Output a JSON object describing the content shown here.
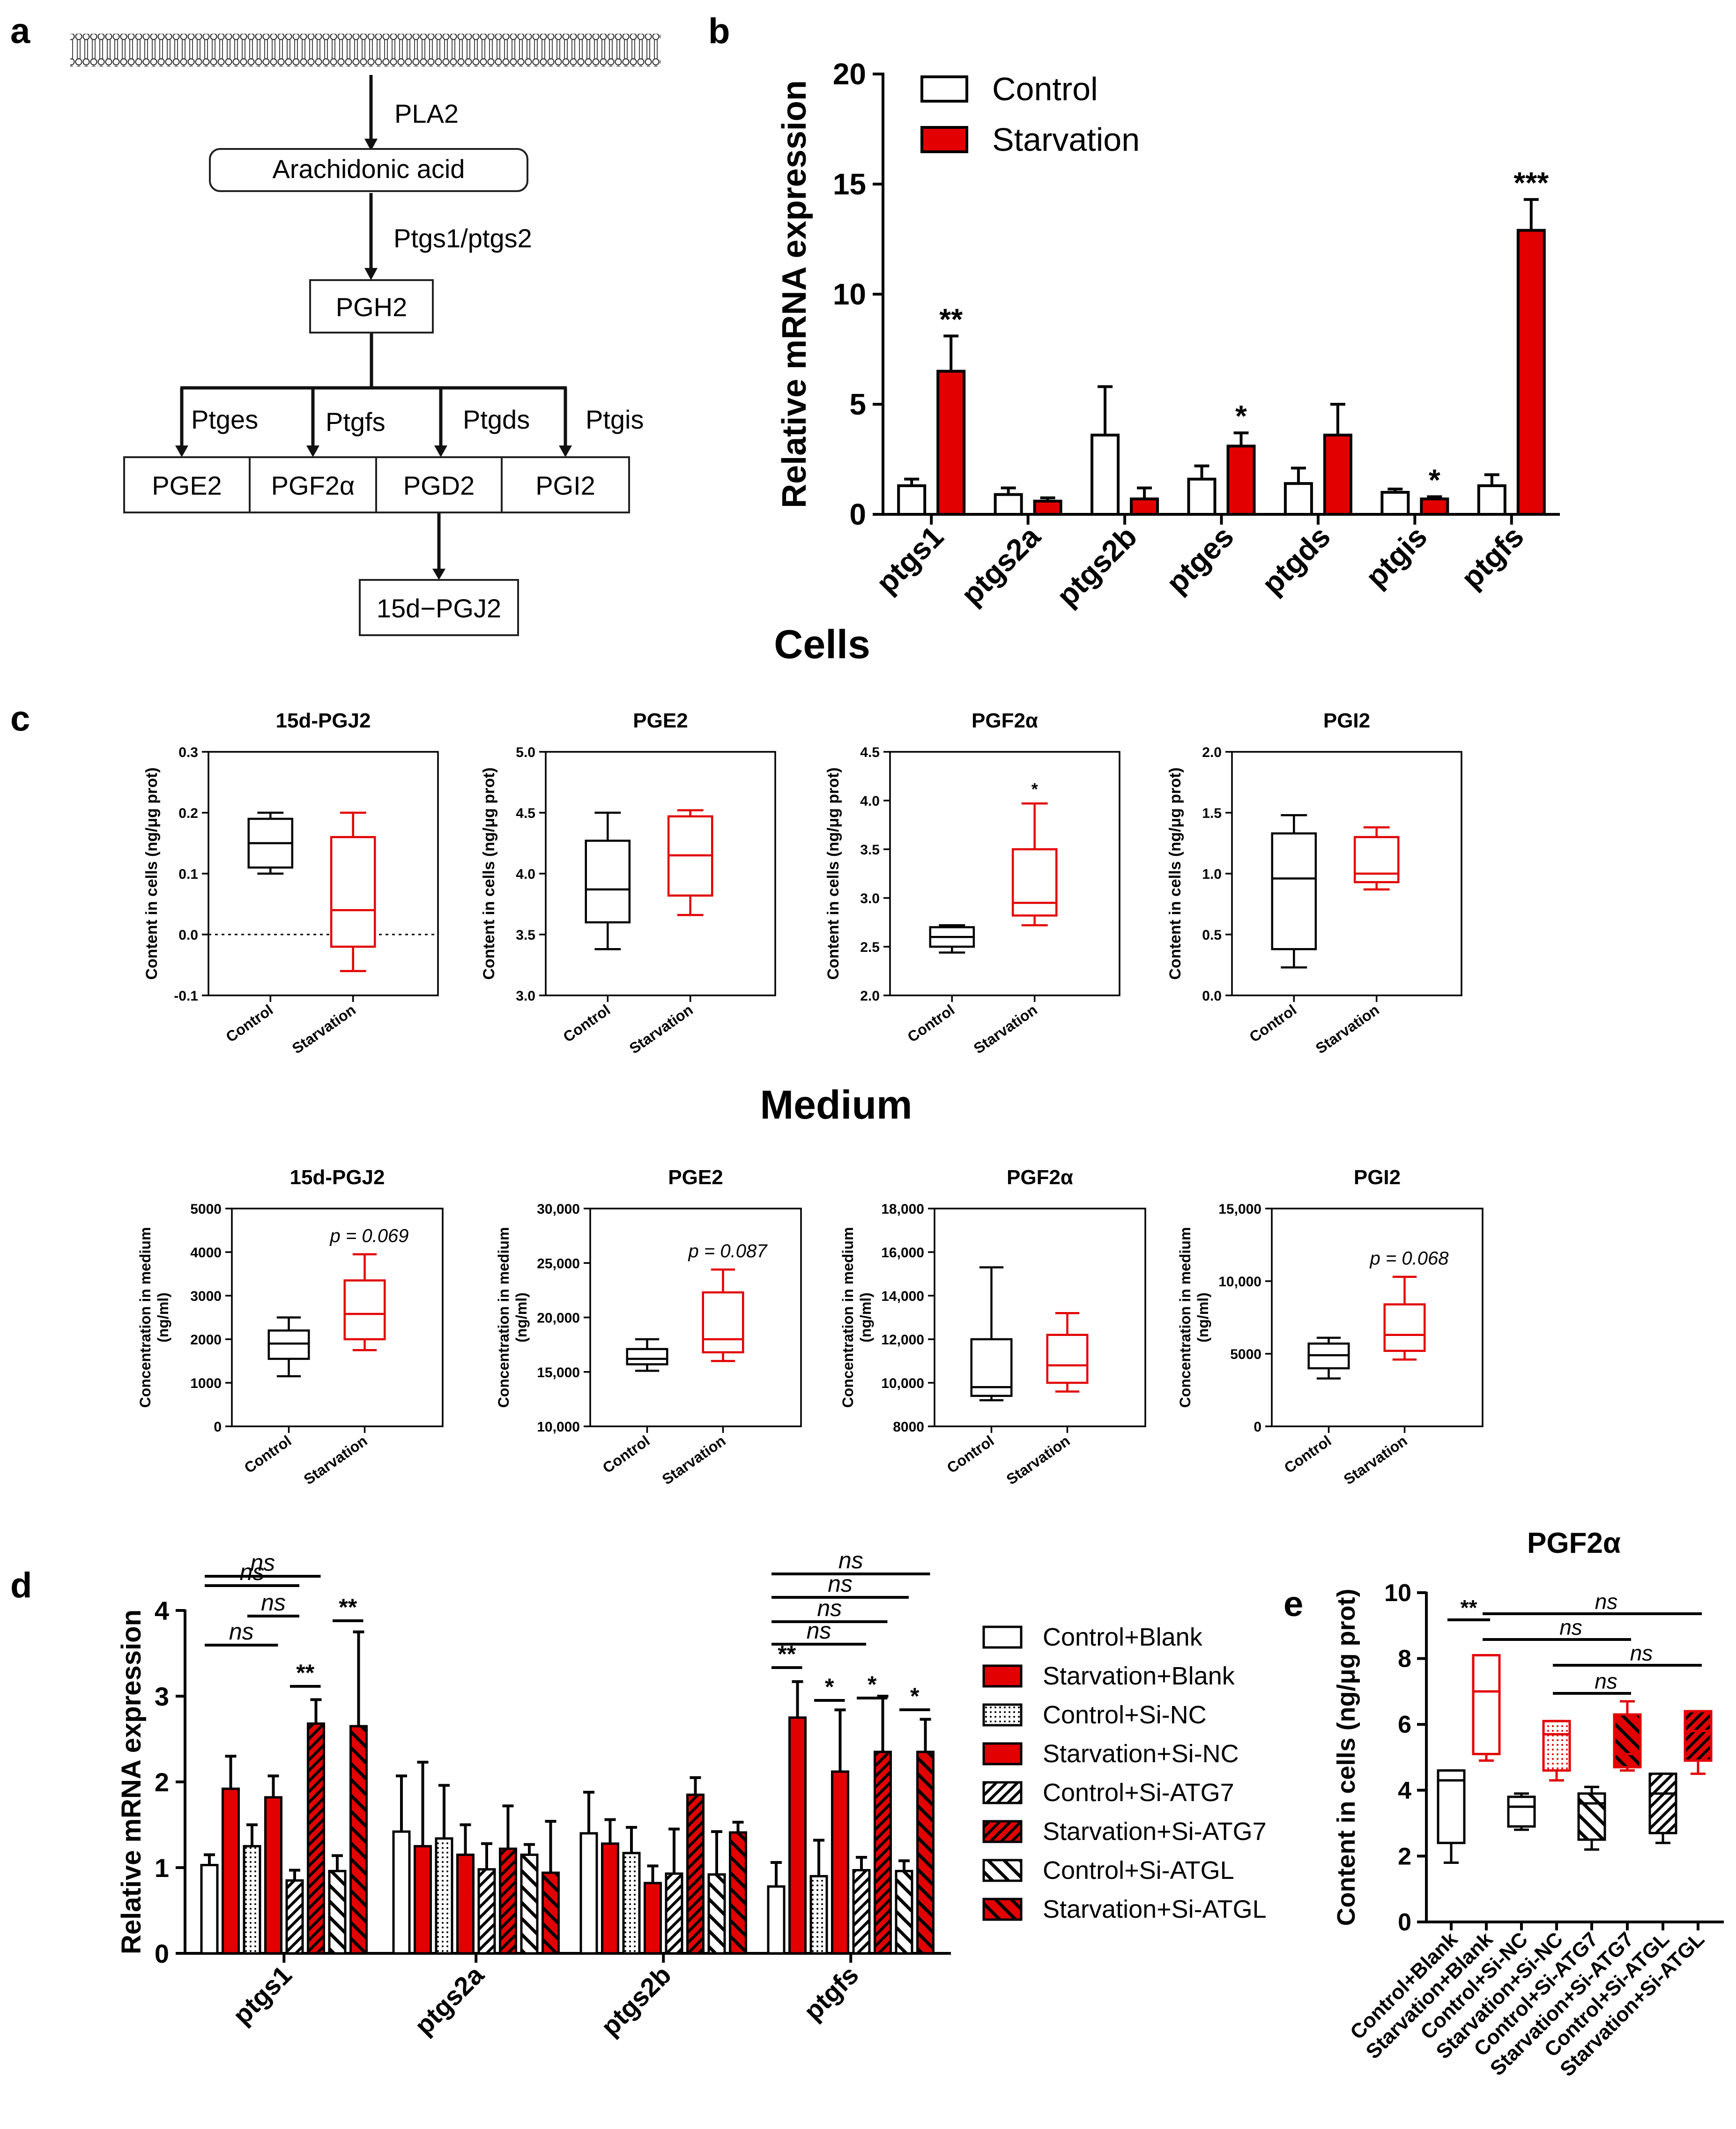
{
  "panel_labels": {
    "a": "a",
    "b": "b",
    "c": "c",
    "d": "d",
    "e": "e"
  },
  "pathway": {
    "step_enzymes": {
      "pla2": "PLA2",
      "ptgs": "Ptgs1/ptgs2"
    },
    "nodes": {
      "arachidonic": "Arachidonic acid",
      "pgh2": "PGH2",
      "pge2": "PGE2",
      "pgf2a": "PGF2α",
      "pgd2": "PGD2",
      "pgi2": "PGI2",
      "pgj2": "15d−PGJ2"
    },
    "branch_enzymes": [
      "Ptges",
      "Ptgfs",
      "Ptgds",
      "Ptgis"
    ]
  },
  "section_titles": {
    "cells": "Cells",
    "medium": "Medium"
  },
  "colors": {
    "control": "#ffffff",
    "starvation": "#e30000",
    "box_control": "#000000",
    "box_starvation": "#e30000"
  },
  "chart_data": [
    {
      "id": "b",
      "type": "bar",
      "ylabel": "Relative mRNA expression",
      "ylim": [
        0,
        20
      ],
      "yticks": [
        "0",
        "5",
        "10",
        "15",
        "20"
      ],
      "categories": [
        "ptgs1",
        "ptgs2a",
        "ptgs2b",
        "ptges",
        "ptgds",
        "ptgis",
        "ptgfs"
      ],
      "series": [
        {
          "name": "Control",
          "values": [
            1.3,
            0.9,
            3.6,
            1.6,
            1.4,
            1.0,
            1.3
          ],
          "errors": [
            0.3,
            0.3,
            2.2,
            0.6,
            0.7,
            0.15,
            0.5
          ]
        },
        {
          "name": "Starvation",
          "values": [
            6.5,
            0.6,
            0.7,
            3.1,
            3.6,
            0.7,
            12.9
          ],
          "errors": [
            1.6,
            0.15,
            0.5,
            0.6,
            1.4,
            0.1,
            1.4
          ]
        }
      ],
      "annotations": [
        "**",
        "",
        "",
        "*",
        "",
        "*",
        "***"
      ]
    },
    {
      "id": "c1",
      "type": "box",
      "title": "15d-PGJ2",
      "ylabel": "Content in cells (ng/μg prot)",
      "ylim": [
        -0.1,
        0.3
      ],
      "yticks": [
        "-0.1",
        "0.0",
        "0.1",
        "0.2",
        "0.3"
      ],
      "zero_line": true,
      "groups": [
        "Control",
        "Starvation"
      ],
      "stats": [
        [
          0.1,
          0.11,
          0.15,
          0.19,
          0.2
        ],
        [
          -0.06,
          -0.02,
          0.04,
          0.16,
          0.2
        ]
      ],
      "annotation": ""
    },
    {
      "id": "c2",
      "type": "box",
      "title": "PGE2",
      "ylabel": "Content in cells (ng/μg prot)",
      "ylim": [
        3.0,
        5.0
      ],
      "yticks": [
        "3.0",
        "3.5",
        "4.0",
        "4.5",
        "5.0"
      ],
      "groups": [
        "Control",
        "Starvation"
      ],
      "stats": [
        [
          3.38,
          3.6,
          3.87,
          4.27,
          4.5
        ],
        [
          3.66,
          3.82,
          4.15,
          4.47,
          4.52
        ]
      ],
      "annotation": ""
    },
    {
      "id": "c3",
      "type": "box",
      "title": "PGF2α",
      "ylabel": "Content in cells (ng/μg prot)",
      "ylim": [
        2.0,
        4.5
      ],
      "yticks": [
        "2.0",
        "2.5",
        "3.0",
        "3.5",
        "4.0",
        "4.5"
      ],
      "groups": [
        "Control",
        "Starvation"
      ],
      "stats": [
        [
          2.44,
          2.5,
          2.6,
          2.7,
          2.72
        ],
        [
          2.72,
          2.82,
          2.95,
          3.5,
          3.97
        ]
      ],
      "annotation": "*"
    },
    {
      "id": "c4",
      "type": "box",
      "title": "PGI2",
      "ylabel": "Content in cells (ng/μg prot)",
      "ylim": [
        0.0,
        2.0
      ],
      "yticks": [
        "0.0",
        "0.5",
        "1.0",
        "1.5",
        "2.0"
      ],
      "groups": [
        "Control",
        "Starvation"
      ],
      "stats": [
        [
          0.23,
          0.38,
          0.96,
          1.33,
          1.48
        ],
        [
          0.87,
          0.93,
          1.0,
          1.3,
          1.38
        ]
      ],
      "annotation": ""
    },
    {
      "id": "m1",
      "type": "box",
      "title": "15d-PGJ2",
      "ylabel": "Concentration in medium (ng/ml)",
      "ylim": [
        0,
        5000
      ],
      "yticks": [
        "0",
        "1000",
        "2000",
        "3000",
        "4000",
        "5000"
      ],
      "groups": [
        "Control",
        "Starvation"
      ],
      "stats": [
        [
          1150,
          1550,
          1900,
          2200,
          2500
        ],
        [
          1750,
          2000,
          2580,
          3350,
          3950
        ]
      ],
      "annotation": "p = 0.069"
    },
    {
      "id": "m2",
      "type": "box",
      "title": "PGE2",
      "ylabel": "Concentration in medium (ng/ml)",
      "ylim": [
        10000,
        30000
      ],
      "yticks": [
        "10,000",
        "15,000",
        "20,000",
        "25,000",
        "30,000"
      ],
      "groups": [
        "Control",
        "Starvation"
      ],
      "stats": [
        [
          15100,
          15700,
          16200,
          17100,
          18000
        ],
        [
          16000,
          16800,
          18000,
          22300,
          24400
        ]
      ],
      "annotation": "p = 0.087"
    },
    {
      "id": "m3",
      "type": "box",
      "title": "PGF2α",
      "ylabel": "Concentration in medium (ng/ml)",
      "ylim": [
        8000,
        18000
      ],
      "yticks": [
        "8000",
        "10,000",
        "12,000",
        "14,000",
        "16,000",
        "18,000"
      ],
      "groups": [
        "Control",
        "Starvation"
      ],
      "stats": [
        [
          9200,
          9400,
          9800,
          12000,
          15300
        ],
        [
          9600,
          10000,
          10800,
          12200,
          13200
        ]
      ],
      "annotation": ""
    },
    {
      "id": "m4",
      "type": "box",
      "title": "PGI2",
      "ylabel": "Concentration in medium (ng/ml)",
      "ylim": [
        0,
        15000
      ],
      "yticks": [
        "0",
        "5000",
        "10,000",
        "15,000"
      ],
      "groups": [
        "Control",
        "Starvation"
      ],
      "stats": [
        [
          3300,
          4000,
          4900,
          5700,
          6100
        ],
        [
          4600,
          5200,
          6300,
          8400,
          10300
        ]
      ],
      "annotation": "p = 0.068"
    },
    {
      "id": "d",
      "type": "bar",
      "ylabel": "Relative mRNA expression",
      "ylim": [
        0,
        4
      ],
      "yticks": [
        "0",
        "1",
        "2",
        "3",
        "4"
      ],
      "categories": [
        "ptgs1",
        "ptgs2a",
        "ptgs2b",
        "ptgfs"
      ],
      "series": [
        {
          "name": "Control+Blank",
          "values": [
            1.03,
            1.42,
            1.4,
            0.78
          ],
          "errors": [
            0.12,
            0.65,
            0.48,
            0.28
          ]
        },
        {
          "name": "Starvation+Blank",
          "values": [
            1.92,
            1.25,
            1.28,
            2.75
          ],
          "errors": [
            0.38,
            0.98,
            0.28,
            0.42
          ]
        },
        {
          "name": "Control+Si-NC",
          "values": [
            1.25,
            1.34,
            1.17,
            0.9
          ],
          "errors": [
            0.25,
            0.62,
            0.3,
            0.42
          ]
        },
        {
          "name": "Starvation+Si-NC",
          "values": [
            1.82,
            1.15,
            0.82,
            2.12
          ],
          "errors": [
            0.25,
            0.35,
            0.2,
            0.72
          ]
        },
        {
          "name": "Control+Si-ATG7",
          "values": [
            0.85,
            0.98,
            0.93,
            0.97
          ],
          "errors": [
            0.12,
            0.3,
            0.52,
            0.15
          ]
        },
        {
          "name": "Starvation+Si-ATG7",
          "values": [
            2.68,
            1.22,
            1.85,
            2.35
          ],
          "errors": [
            0.28,
            0.5,
            0.2,
            0.65
          ]
        },
        {
          "name": "Control+Si-ATGL",
          "values": [
            0.96,
            1.15,
            0.92,
            0.96
          ],
          "errors": [
            0.18,
            0.12,
            0.5,
            0.12
          ]
        },
        {
          "name": "Starvation+Si-ATGL",
          "values": [
            2.65,
            0.94,
            1.41,
            2.35
          ],
          "errors": [
            1.1,
            0.6,
            0.12,
            0.38
          ]
        }
      ],
      "annotations": [
        "ns",
        "ns",
        "ns",
        "ns",
        "**",
        "**",
        "ns",
        "ns",
        "ns",
        "ns",
        "**",
        "*",
        "*",
        "*"
      ]
    },
    {
      "id": "e",
      "type": "box",
      "title": "PGF2α",
      "ylabel": "Content in cells (ng/μg prot)",
      "ylim": [
        0,
        10
      ],
      "yticks": [
        "0",
        "2",
        "4",
        "6",
        "8",
        "10"
      ],
      "groups": [
        "Control+Blank",
        "Starvation+Blank",
        "Control+Si-NC",
        "Starvation+Si-NC",
        "Control+Si-ATG7",
        "Starvation+Si-ATG7",
        "Control+Si-ATGL",
        "Starvation+Si-ATGL"
      ],
      "stats": [
        [
          1.8,
          2.4,
          4.3,
          4.6,
          4.6
        ],
        [
          4.9,
          5.1,
          7.0,
          8.1,
          8.1
        ],
        [
          2.8,
          2.9,
          3.5,
          3.8,
          3.9
        ],
        [
          4.3,
          4.6,
          5.7,
          6.1,
          6.1
        ],
        [
          2.2,
          2.5,
          3.6,
          3.9,
          4.1
        ],
        [
          4.6,
          4.7,
          5.1,
          6.3,
          6.7
        ],
        [
          2.4,
          2.7,
          3.9,
          4.5,
          4.5
        ],
        [
          4.5,
          4.9,
          5.8,
          6.4,
          6.4
        ]
      ],
      "annotations": [
        "**",
        "ns",
        "ns",
        "ns",
        "ns"
      ]
    }
  ]
}
